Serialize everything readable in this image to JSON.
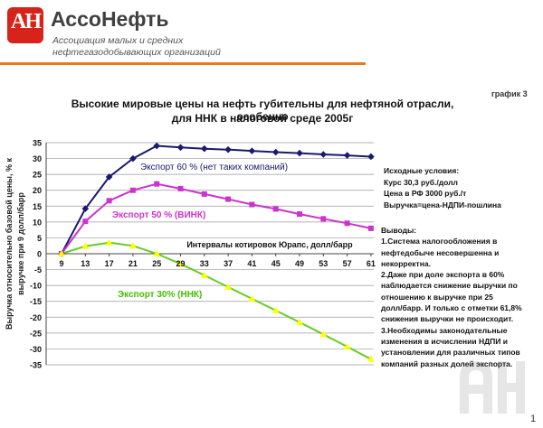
{
  "brand": {
    "logo_text": "АН",
    "name": "АссоНефть",
    "sub_line1": "Ассоциация малых и средних",
    "sub_line2": "нефтегазодобывающих организаций",
    "accent_color": "#e87a1e",
    "logo_color": "#d8231a"
  },
  "graph_number": "график 3",
  "conditions": {
    "title": "Исходные условия:",
    "lines": [
      "Курс 30,3 руб./долл",
      "Цена в РФ 3000 руб./т",
      "Выручка=цена-НДПИ-пошлина"
    ]
  },
  "conclusions": {
    "title": "Выводы:",
    "lines": [
      "1.Система налогообложения в",
      "нефтедобыче несовершенна и",
      "некорректна.",
      "2.Даже при доле экспорта в 60%",
      "наблюдается снижение выручки по",
      "отношению к выручке при 25",
      "долл/барр. И только с отметки 61,8%",
      "снижения выручки не происходит.",
      "3.Необходимы законодательные",
      "изменения в исчислении НДПИ и",
      "установлении для различных типов",
      "компаний разных долей экспорта."
    ]
  },
  "page_number": "1",
  "chart_data": {
    "type": "line",
    "title": "Высокие мировые цены на нефть губительны для нефтяной отрасли, особенно для ННК в налоговой среде 2005г",
    "title_line1": "Высокие мировые цены на нефть губительны для нефтяной отрасли, особенно",
    "title_line2": "для ННК в налоговой среде 2005г",
    "xlabel": "Интервалы котировок Юрапс, долл/барр",
    "ylabel_line1": "Выручка относительно базовой цены, % к",
    "ylabel_line2": "выручке при 9 долл/барр",
    "x": [
      9,
      13,
      17,
      21,
      25,
      29,
      33,
      37,
      41,
      45,
      49,
      53,
      57,
      61
    ],
    "x_tick_labels": [
      "9",
      "13",
      "17",
      "21",
      "25",
      "29",
      "33",
      "37",
      "41",
      "45",
      "49",
      "53",
      "57",
      "61"
    ],
    "ylim": [
      -35,
      35
    ],
    "y_ticks": [
      35,
      30,
      25,
      20,
      15,
      10,
      5,
      0,
      -5,
      -10,
      -15,
      -20,
      -25,
      -30,
      -35
    ],
    "y_tick_labels": [
      "35",
      "30",
      "25",
      "20",
      "15",
      "10",
      "5",
      "0",
      "-5",
      "-10",
      "-15",
      "-20",
      "-25",
      "-30",
      "-35"
    ],
    "grid": "horizontal",
    "series": [
      {
        "name": "Экспорт 60 % (нет таких компаний)",
        "color": "#1a1a6e",
        "marker": "diamond",
        "values": [
          0,
          14.2,
          24.2,
          30.0,
          34.0,
          33.5,
          33.1,
          32.8,
          32.4,
          32.0,
          31.7,
          31.3,
          31.0,
          30.6
        ]
      },
      {
        "name": "Экспорт 50 % (ВИНК)",
        "color": "#cc33cc",
        "marker": "square",
        "values": [
          0,
          10.2,
          16.7,
          20.0,
          22.0,
          20.5,
          18.8,
          17.2,
          15.5,
          14.1,
          12.5,
          11.0,
          9.6,
          8.0
        ]
      },
      {
        "name": "Экспорт 30% (ННК)",
        "color": "#66cc22",
        "marker": "triangle",
        "point_color": "#ffff00",
        "values": [
          0,
          2.4,
          3.5,
          2.5,
          0.0,
          -3.2,
          -6.8,
          -10.5,
          -14.2,
          -17.9,
          -21.6,
          -25.4,
          -29.3,
          -33.2
        ]
      }
    ]
  }
}
